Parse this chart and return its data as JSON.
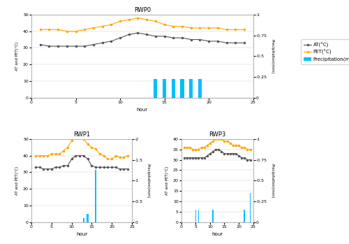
{
  "rwp0": {
    "title": "RWP0",
    "hours": [
      1,
      2,
      3,
      4,
      5,
      6,
      7,
      8,
      9,
      10,
      11,
      12,
      13,
      14,
      15,
      16,
      17,
      18,
      19,
      20,
      21,
      22,
      23,
      24
    ],
    "AT": [
      32,
      31,
      31,
      31,
      31,
      31,
      32,
      33,
      34,
      36,
      38,
      39,
      38,
      37,
      37,
      36,
      36,
      35,
      35,
      34,
      34,
      33,
      33,
      33
    ],
    "PET": [
      41,
      41,
      41,
      40,
      40,
      41,
      42,
      43,
      44,
      46,
      47,
      48,
      47,
      46,
      44,
      43,
      43,
      42,
      42,
      42,
      42,
      41,
      41,
      41
    ],
    "precip_hours": [
      14,
      15,
      16,
      17,
      18,
      19
    ],
    "precip_vals": [
      0.22,
      0.22,
      0.22,
      0.22,
      0.22,
      0.22
    ],
    "AT_ylim": [
      0,
      50
    ],
    "precip_ylim": [
      0,
      1.0
    ],
    "precip_yticks": [
      0,
      0.25,
      0.5,
      0.75,
      1.0
    ],
    "precip_yticklabels": [
      "0",
      "-0.25",
      "-0.5",
      "-0.75",
      "-1"
    ],
    "AT_yticks": [
      0,
      10,
      20,
      30,
      40,
      50
    ]
  },
  "rwp1": {
    "title": "RWP1",
    "hours": [
      1,
      2,
      3,
      4,
      5,
      6,
      7,
      8,
      9,
      10,
      11,
      12,
      13,
      14,
      15,
      16,
      17,
      18,
      19,
      20,
      21,
      22,
      23,
      24
    ],
    "AT": [
      33,
      33,
      32,
      32,
      32,
      33,
      33,
      34,
      34,
      38,
      40,
      40,
      40,
      38,
      34,
      33,
      33,
      33,
      33,
      33,
      33,
      32,
      32,
      32
    ],
    "PET": [
      40,
      40,
      40,
      40,
      41,
      41,
      41,
      43,
      45,
      49,
      51,
      53,
      50,
      47,
      45,
      44,
      41,
      40,
      38,
      38,
      40,
      39,
      39,
      40
    ],
    "precip_hours": [
      13,
      14,
      16
    ],
    "precip_vals": [
      0.1,
      0.2,
      1.25
    ],
    "AT_ylim": [
      0,
      50
    ],
    "precip_ylim": [
      0,
      2.0
    ],
    "precip_yticks": [
      0,
      0.5,
      1.0,
      1.5,
      2.0
    ],
    "precip_yticklabels": [
      "0",
      "-0.5",
      "-1",
      "-1.5",
      "-2"
    ],
    "AT_yticks": [
      0,
      10,
      20,
      30,
      40,
      50
    ]
  },
  "rwp3": {
    "title": "RWP3",
    "hours": [
      1,
      2,
      3,
      4,
      5,
      6,
      7,
      8,
      9,
      10,
      11,
      12,
      13,
      14,
      15,
      16,
      17,
      18,
      19,
      20,
      21,
      22,
      23,
      24
    ],
    "AT": [
      31,
      31,
      31,
      31,
      31,
      31,
      31,
      31,
      32,
      33,
      34,
      35,
      35,
      34,
      33,
      33,
      33,
      33,
      33,
      32,
      31,
      31,
      30,
      30
    ],
    "PET": [
      36,
      36,
      36,
      35,
      35,
      35,
      36,
      36,
      37,
      38,
      39,
      40,
      40,
      40,
      39,
      39,
      38,
      37,
      37,
      37,
      36,
      36,
      35,
      35
    ],
    "precip_hours": [
      5,
      6,
      11,
      22,
      24
    ],
    "precip_vals": [
      0.15,
      0.15,
      0.15,
      0.15,
      0.35
    ],
    "AT_ylim": [
      0,
      40
    ],
    "precip_ylim": [
      0,
      1.0
    ],
    "precip_yticks": [
      0,
      0.25,
      0.5,
      0.75,
      1.0
    ],
    "precip_yticklabels": [
      "0",
      "-0.25",
      "-0.5",
      "-0.75",
      "-1"
    ],
    "AT_yticks": [
      0,
      5,
      10,
      15,
      20,
      25,
      30,
      35,
      40
    ]
  },
  "AT_color": "#555555",
  "PET_color": "#FFA500",
  "precip_color": "#00BFFF",
  "marker": ".",
  "markersize": 3,
  "linewidth": 0.8,
  "xlabel": "hour",
  "ylabel_left": "AT and PET(°C)",
  "ylabel_right": "Precipitation(mm)",
  "legend_labels": [
    "AT(°C)",
    "PET(°C)",
    "Precipitation(mm)"
  ],
  "xticks": [
    0,
    5,
    10,
    15,
    20,
    25
  ]
}
